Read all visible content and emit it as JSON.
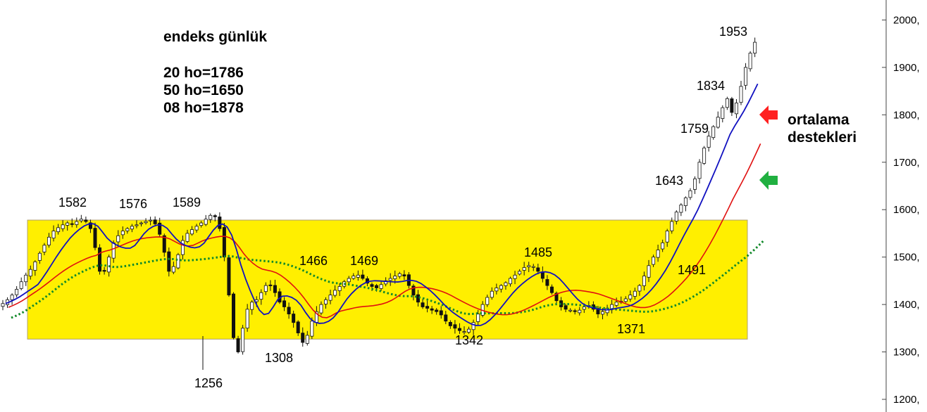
{
  "chart_data": {
    "type": "candlestick",
    "title": "endeks günlük",
    "info_lines": [
      "20 ho=1786",
      "50 ho=1650",
      "08 ho=1878"
    ],
    "annotation": [
      "ortalama",
      "destekleri"
    ],
    "y_ticks": [
      "1200,",
      "1300,",
      "1400,",
      "1500,",
      "1600,",
      "1700,",
      "1800,",
      "1900,",
      "2000,"
    ],
    "ylim": [
      1175,
      2035
    ],
    "range_band": {
      "low": 1327,
      "high": 1578
    },
    "peak_labels": [
      {
        "label": "1582",
        "value": 1582
      },
      {
        "label": "1576",
        "value": 1576
      },
      {
        "label": "1589",
        "value": 1589
      },
      {
        "label": "1256",
        "value": 1256
      },
      {
        "label": "1308",
        "value": 1308
      },
      {
        "label": "1466",
        "value": 1466
      },
      {
        "label": "1469",
        "value": 1469
      },
      {
        "label": "1342",
        "value": 1342
      },
      {
        "label": "1485",
        "value": 1485
      },
      {
        "label": "1371",
        "value": 1371
      },
      {
        "label": "1491",
        "value": 1491
      },
      {
        "label": "1643",
        "value": 1643
      },
      {
        "label": "1759",
        "value": 1759
      },
      {
        "label": "1834",
        "value": 1834
      },
      {
        "label": "1953",
        "value": 1953
      }
    ],
    "close": [
      1402,
      1410,
      1420,
      1432,
      1448,
      1462,
      1474,
      1490,
      1508,
      1525,
      1542,
      1555,
      1562,
      1568,
      1572,
      1570,
      1575,
      1580,
      1575,
      1560,
      1520,
      1470,
      1470,
      1500,
      1530,
      1545,
      1555,
      1560,
      1565,
      1568,
      1572,
      1575,
      1578,
      1570,
      1548,
      1510,
      1470,
      1480,
      1505,
      1535,
      1550,
      1558,
      1565,
      1572,
      1580,
      1588,
      1585,
      1560,
      1500,
      1420,
      1330,
      1300,
      1350,
      1390,
      1405,
      1410,
      1425,
      1440,
      1440,
      1425,
      1405,
      1395,
      1380,
      1362,
      1340,
      1320,
      1335,
      1365,
      1385,
      1400,
      1410,
      1420,
      1430,
      1438,
      1448,
      1455,
      1460,
      1462,
      1455,
      1445,
      1438,
      1435,
      1442,
      1450,
      1455,
      1460,
      1465,
      1460,
      1440,
      1420,
      1405,
      1395,
      1392,
      1388,
      1385,
      1378,
      1365,
      1355,
      1350,
      1345,
      1343,
      1348,
      1362,
      1380,
      1400,
      1415,
      1428,
      1435,
      1440,
      1446,
      1455,
      1462,
      1470,
      1478,
      1482,
      1480,
      1470,
      1455,
      1440,
      1425,
      1408,
      1395,
      1390,
      1388,
      1385,
      1388,
      1395,
      1398,
      1390,
      1380,
      1385,
      1392,
      1400,
      1405,
      1407,
      1412,
      1420,
      1428,
      1440,
      1460,
      1482,
      1500,
      1515,
      1530,
      1555,
      1575,
      1595,
      1610,
      1625,
      1640,
      1665,
      1700,
      1730,
      1755,
      1775,
      1795,
      1815,
      1834,
      1805,
      1825,
      1860,
      1900,
      1930,
      1953
    ]
  }
}
